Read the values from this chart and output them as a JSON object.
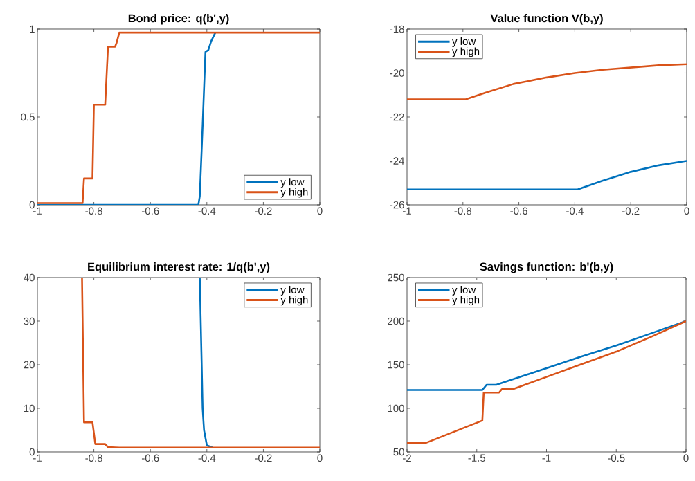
{
  "chart_data": [
    {
      "type": "line",
      "title": "Bond price: q(b',y)",
      "xlim": [
        -1,
        0
      ],
      "ylim": [
        0,
        1
      ],
      "xticks": [
        -1,
        -0.8,
        -0.6,
        -0.4,
        -0.2,
        0
      ],
      "yticks": [
        0,
        0.5,
        1
      ],
      "legend": "bottom right",
      "series": [
        {
          "name": "y low",
          "color": "#0072bd",
          "x": [
            -1,
            -0.43,
            -0.425,
            -0.415,
            -0.405,
            -0.395,
            -0.385,
            -0.37
          ],
          "values": [
            0,
            0,
            0.05,
            0.45,
            0.87,
            0.88,
            0.93,
            0.98
          ]
        },
        {
          "name": "y high",
          "color": "#d95319",
          "x": [
            -1,
            -0.84,
            -0.835,
            -0.805,
            -0.8,
            -0.76,
            -0.75,
            -0.725,
            -0.72,
            -0.71,
            0
          ],
          "values": [
            0.01,
            0.01,
            0.15,
            0.15,
            0.57,
            0.57,
            0.9,
            0.9,
            0.92,
            0.98,
            0.98
          ]
        }
      ]
    },
    {
      "type": "line",
      "title": "Value function V(b,y)",
      "xlim": [
        -1,
        0
      ],
      "ylim": [
        -26,
        -18
      ],
      "xticks": [
        -1,
        -0.8,
        -0.6,
        -0.4,
        -0.2,
        0
      ],
      "yticks": [
        -26,
        -24,
        -22,
        -20,
        -18
      ],
      "legend": "top left",
      "series": [
        {
          "name": "y low",
          "color": "#0072bd",
          "x": [
            -1,
            -0.39,
            -0.3,
            -0.2,
            -0.1,
            0
          ],
          "values": [
            -25.3,
            -25.3,
            -24.9,
            -24.5,
            -24.2,
            -24.0
          ]
        },
        {
          "name": "y high",
          "color": "#d95319",
          "x": [
            -1,
            -0.79,
            -0.72,
            -0.62,
            -0.5,
            -0.4,
            -0.3,
            -0.2,
            -0.1,
            0
          ],
          "values": [
            -21.2,
            -21.2,
            -20.9,
            -20.5,
            -20.2,
            -20.0,
            -19.85,
            -19.75,
            -19.65,
            -19.6
          ]
        }
      ]
    },
    {
      "type": "line",
      "title": "Equilibrium interest rate: 1/q(b',y)",
      "xlim": [
        -1,
        0
      ],
      "ylim": [
        0,
        40
      ],
      "xticks": [
        -1,
        -0.8,
        -0.6,
        -0.4,
        -0.2,
        0
      ],
      "yticks": [
        0,
        10,
        20,
        30,
        40
      ],
      "legend": "top right",
      "series": [
        {
          "name": "y low",
          "color": "#0072bd",
          "x": [
            -0.425,
            -0.415,
            -0.41,
            -0.4,
            -0.38
          ],
          "values": [
            40,
            10,
            5,
            1.5,
            1.0
          ]
        },
        {
          "name": "y high",
          "color": "#d95319",
          "x": [
            -0.842,
            -0.835,
            -0.805,
            -0.795,
            -0.76,
            -0.75,
            -0.71,
            0
          ],
          "values": [
            40,
            6.8,
            6.8,
            1.8,
            1.8,
            1.1,
            1.0,
            1.0
          ]
        }
      ]
    },
    {
      "type": "line",
      "title": "Savings function: b'(b,y)",
      "xlim": [
        -2,
        0
      ],
      "ylim": [
        50,
        250
      ],
      "xticks": [
        -2,
        -1.5,
        -1,
        -0.5,
        0
      ],
      "yticks": [
        50,
        100,
        150,
        200,
        250
      ],
      "legend": "top left",
      "series": [
        {
          "name": "y low",
          "color": "#0072bd",
          "x": [
            -2,
            -1.46,
            -1.43,
            -1.36,
            -1.0,
            -0.76,
            -0.5,
            -0.25,
            0
          ],
          "values": [
            121,
            121,
            127,
            127,
            146,
            159,
            172,
            186,
            200
          ]
        },
        {
          "name": "y high",
          "color": "#d95319",
          "x": [
            -2,
            -1.87,
            -1.46,
            -1.45,
            -1.34,
            -1.32,
            -1.24,
            -1.0,
            -0.76,
            -0.5,
            -0.25,
            0
          ],
          "values": [
            60,
            60,
            86,
            118,
            118,
            122,
            122,
            136,
            150,
            165,
            182,
            200
          ]
        }
      ]
    }
  ]
}
